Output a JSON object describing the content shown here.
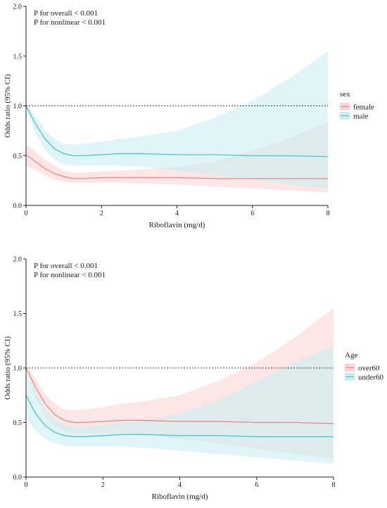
{
  "chart_data": [
    {
      "type": "line",
      "annotations": [
        "P for overall < 0.001",
        "P for nonlinear < 0.001"
      ],
      "xlabel": "Riboflavin (mg/d)",
      "ylabel": "Odds ratio (95% CI)",
      "xlim": [
        0,
        8
      ],
      "ylim": [
        0,
        2.0
      ],
      "xticks": [
        0,
        2,
        4,
        6,
        8
      ],
      "yticks": [
        0.0,
        0.5,
        1.0,
        1.5,
        2.0
      ],
      "ytick_labels": [
        "0.0",
        "0.5",
        "1.0",
        "1.5",
        "2.0"
      ],
      "reference_line": 1.0,
      "legend_title": "sex",
      "legend_position": "right",
      "series": [
        {
          "name": "female",
          "color": "#f08080",
          "fill": "#fbd5d5",
          "x": [
            0,
            0.25,
            0.5,
            0.75,
            1,
            1.25,
            1.5,
            2,
            2.5,
            3,
            4,
            5,
            6,
            7,
            8
          ],
          "values": [
            0.51,
            0.44,
            0.37,
            0.32,
            0.29,
            0.27,
            0.27,
            0.28,
            0.28,
            0.28,
            0.28,
            0.27,
            0.27,
            0.27,
            0.27
          ],
          "lower": [
            0.4,
            0.35,
            0.3,
            0.26,
            0.24,
            0.23,
            0.23,
            0.23,
            0.23,
            0.22,
            0.21,
            0.19,
            0.17,
            0.15,
            0.13
          ],
          "upper": [
            0.62,
            0.54,
            0.46,
            0.4,
            0.35,
            0.33,
            0.33,
            0.34,
            0.35,
            0.36,
            0.39,
            0.44,
            0.55,
            0.68,
            0.84
          ]
        },
        {
          "name": "male",
          "color": "#3fc1c9",
          "fill": "#c9eef1",
          "x": [
            0,
            0.25,
            0.5,
            0.75,
            1,
            1.25,
            1.5,
            2,
            2.5,
            3,
            4,
            5,
            6,
            7,
            8
          ],
          "values": [
            1.0,
            0.82,
            0.67,
            0.57,
            0.52,
            0.5,
            0.5,
            0.51,
            0.52,
            0.52,
            0.51,
            0.51,
            0.5,
            0.5,
            0.49
          ],
          "lower": [
            0.98,
            0.72,
            0.56,
            0.46,
            0.41,
            0.4,
            0.4,
            0.4,
            0.4,
            0.39,
            0.35,
            0.31,
            0.26,
            0.21,
            0.17
          ],
          "upper": [
            1.02,
            0.9,
            0.76,
            0.67,
            0.62,
            0.61,
            0.62,
            0.64,
            0.67,
            0.69,
            0.75,
            0.88,
            1.05,
            1.28,
            1.55
          ]
        }
      ]
    },
    {
      "type": "line",
      "annotations": [
        "P for overall < 0.001",
        "P for nonlinear < 0.001"
      ],
      "xlabel": "Riboflavin (mg/d)",
      "ylabel": "Odds ratio (95% CI)",
      "xlim": [
        0,
        8
      ],
      "ylim": [
        0,
        2.0
      ],
      "xticks": [
        0,
        2,
        4,
        6,
        8
      ],
      "yticks": [
        0.0,
        0.5,
        1.0,
        1.5,
        2.0
      ],
      "ytick_labels": [
        "0.0",
        "0.5",
        "1.0",
        "1.5",
        "2.0"
      ],
      "reference_line": 1.0,
      "legend_title": "Age",
      "legend_position": "right",
      "series": [
        {
          "name": "over60",
          "color": "#f08080",
          "fill": "#fbd5d5",
          "x": [
            0,
            0.25,
            0.5,
            0.75,
            1,
            1.25,
            1.5,
            2,
            2.5,
            3,
            4,
            5,
            6,
            7,
            8
          ],
          "values": [
            1.0,
            0.82,
            0.67,
            0.57,
            0.52,
            0.5,
            0.5,
            0.51,
            0.52,
            0.52,
            0.51,
            0.51,
            0.5,
            0.5,
            0.49
          ],
          "lower": [
            0.98,
            0.72,
            0.56,
            0.46,
            0.41,
            0.4,
            0.4,
            0.4,
            0.4,
            0.39,
            0.35,
            0.31,
            0.26,
            0.21,
            0.17
          ],
          "upper": [
            1.02,
            0.9,
            0.76,
            0.67,
            0.62,
            0.61,
            0.62,
            0.64,
            0.67,
            0.69,
            0.75,
            0.88,
            1.05,
            1.28,
            1.55
          ]
        },
        {
          "name": "under60",
          "color": "#3fc1c9",
          "fill": "#c9eef1",
          "x": [
            0,
            0.25,
            0.5,
            0.75,
            1,
            1.25,
            1.5,
            2,
            2.5,
            3,
            4,
            5,
            6,
            7,
            8
          ],
          "values": [
            0.75,
            0.58,
            0.47,
            0.41,
            0.38,
            0.37,
            0.37,
            0.38,
            0.39,
            0.39,
            0.38,
            0.38,
            0.37,
            0.37,
            0.37
          ],
          "lower": [
            0.55,
            0.42,
            0.35,
            0.31,
            0.29,
            0.28,
            0.28,
            0.28,
            0.28,
            0.27,
            0.24,
            0.21,
            0.18,
            0.15,
            0.12
          ],
          "upper": [
            0.95,
            0.78,
            0.62,
            0.52,
            0.48,
            0.46,
            0.46,
            0.48,
            0.5,
            0.52,
            0.58,
            0.7,
            0.88,
            1.05,
            1.2
          ]
        }
      ]
    }
  ]
}
